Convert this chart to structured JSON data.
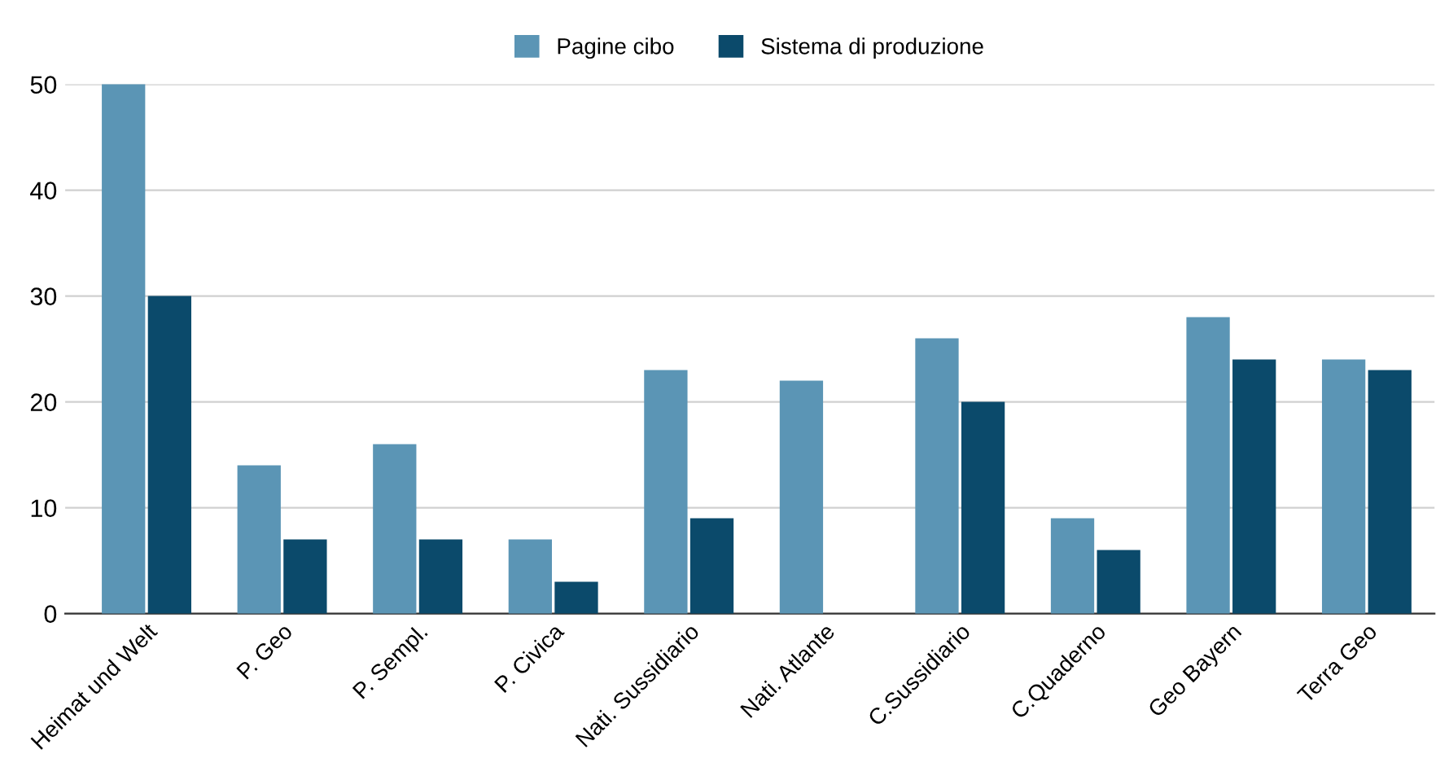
{
  "chart_data": {
    "type": "bar",
    "categories": [
      "Heimat und Welt",
      "P. Geo",
      "P. Sempl.",
      "P. Civica",
      "Nati. Sussidiario",
      "Nati. Atlante",
      "C.Sussidiario",
      "C.Quaderno",
      "Geo Bayern",
      "Terra Geo"
    ],
    "series": [
      {
        "name": "Pagine cibo",
        "color": "#5b95b5",
        "values": [
          50,
          14,
          16,
          7,
          23,
          22,
          26,
          9,
          28,
          24
        ]
      },
      {
        "name": "Sistema di produzione",
        "color": "#0b4a6b",
        "values": [
          30,
          7,
          7,
          3,
          9,
          null,
          20,
          6,
          24,
          23
        ]
      }
    ],
    "ylim": [
      0,
      50
    ],
    "yticks": [
      0,
      10,
      20,
      30,
      40,
      50
    ],
    "grid": "y",
    "legend": "top"
  }
}
